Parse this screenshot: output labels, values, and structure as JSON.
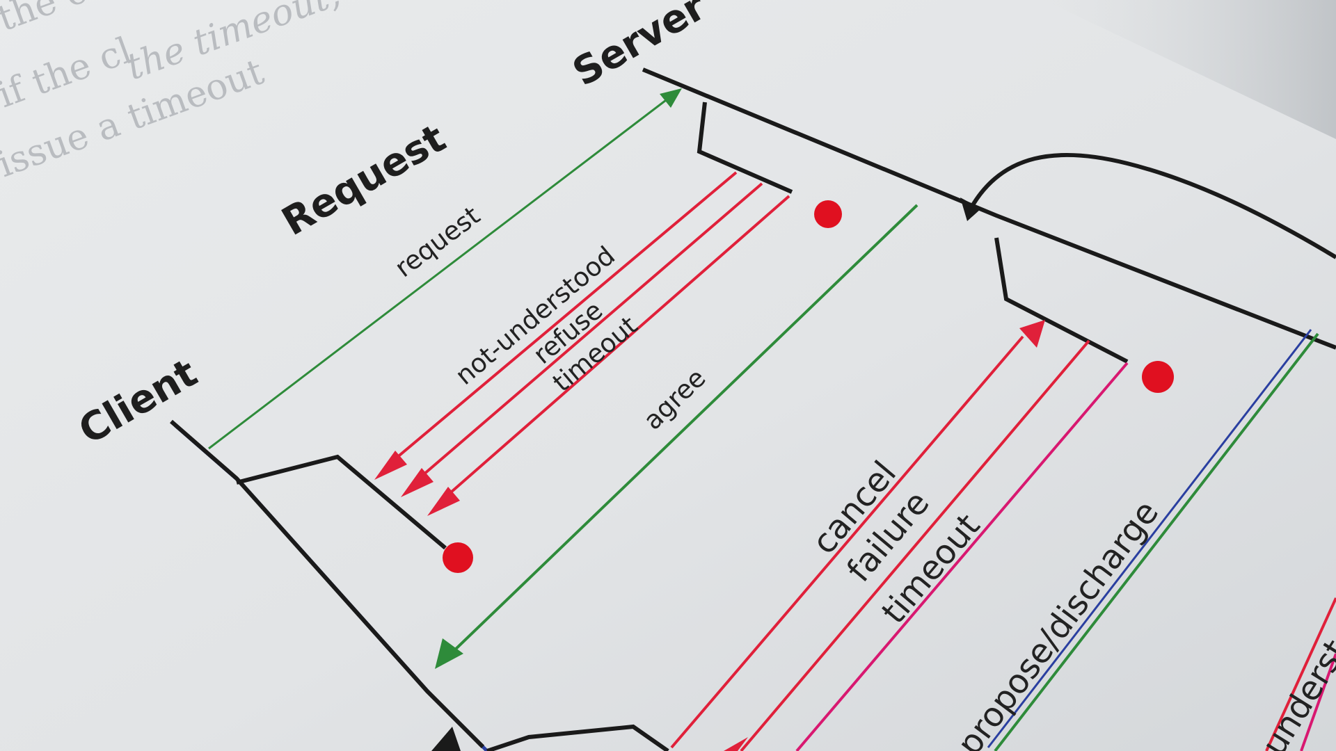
{
  "page_text": {
    "line_1": "the cli",
    "line_2": "if the cl",
    "line_3": "the timeout,",
    "line_4": "issue a timeout"
  },
  "diagram": {
    "title": "Request",
    "client_label": "Client",
    "server_label": "Server",
    "messages": {
      "request": "request",
      "not_understood": "not-understood",
      "refuse": "refuse",
      "timeout_1": "timeout",
      "agree": "agree",
      "cancel": "cancel",
      "failure": "failure",
      "timeout_2": "timeout",
      "propose_discharge": "propose/discharge",
      "understood_cut": "understood"
    }
  },
  "colors": {
    "paper": "#e4e6e8",
    "green_line": "#2e8b3a",
    "red_line": "#e0203a",
    "magenta_line": "#d81870",
    "blue_line": "#2a3fa0",
    "black_line": "#1a1a1a",
    "terminator": "#e01020"
  }
}
